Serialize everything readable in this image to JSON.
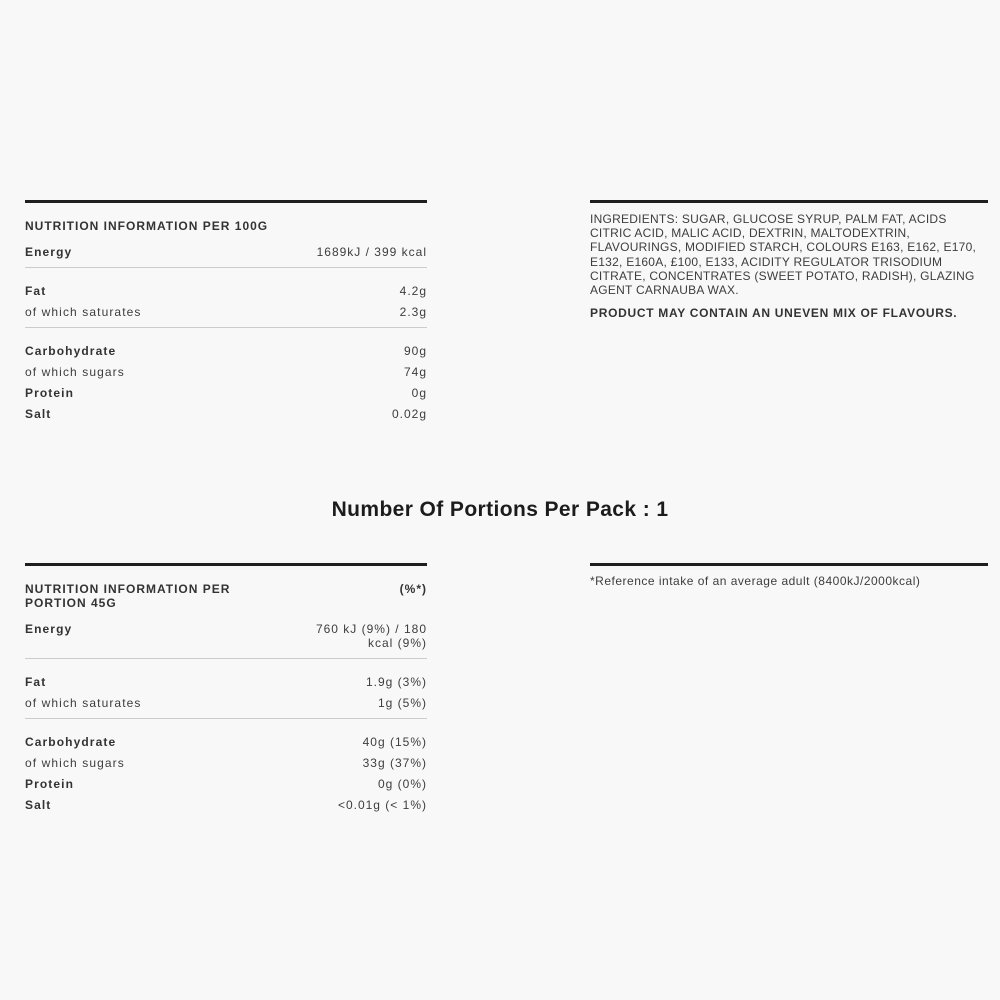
{
  "page_background": "#f8f8f8",
  "colors": {
    "rule_dark": "#1f1f1f",
    "rule_light": "#cccccc",
    "body_text": "#3d3d3d",
    "bold_text": "#333333"
  },
  "nutrition_100g": {
    "title": "NUTRITION INFORMATION PER 100G",
    "groups": [
      {
        "rows": [
          {
            "label": "Energy",
            "value": "1689kJ / 399 kcal"
          }
        ]
      },
      {
        "rows": [
          {
            "label": "Fat",
            "value": "4.2g"
          },
          {
            "label": "of which saturates",
            "value": "2.3g"
          }
        ]
      },
      {
        "rows": [
          {
            "label": "Carbohydrate",
            "value": "90g"
          },
          {
            "label": "of which sugars",
            "value": "74g"
          },
          {
            "label": "Protein",
            "value": "0g"
          },
          {
            "label": "Salt",
            "value": "0.02g"
          }
        ]
      }
    ]
  },
  "ingredients": {
    "text": "INGREDIENTS: SUGAR, GLUCOSE SYRUP, PALM FAT, ACIDS CITRIC ACID, MALIC ACID, DEXTRIN, MALTODEXTRIN, FLAVOURINGS, MODIFIED STARCH, COLOURS E163, E162, E170, E132, E160A, £100, E133, ACIDITY REGULATOR TRISODIUM CITRATE, CONCENTRATES (SWEET POTATO, RADISH), GLAZING AGENT CARNAUBA WAX.",
    "warning": "PRODUCT MAY CONTAIN AN UNEVEN MIX OF FLAVOURS."
  },
  "portions_heading": "Number Of Portions Per Pack : 1",
  "nutrition_portion": {
    "title": "NUTRITION INFORMATION PER PORTION 45G",
    "percent_header": "(%*)",
    "groups": [
      {
        "rows": [
          {
            "label": "Energy",
            "value": "760 kJ (9%) / 180\nkcal (9%)"
          }
        ]
      },
      {
        "rows": [
          {
            "label": "Fat",
            "value": "1.9g (3%)"
          },
          {
            "label": "of which saturates",
            "value": "1g (5%)"
          }
        ]
      },
      {
        "rows": [
          {
            "label": "Carbohydrate",
            "value": "40g (15%)"
          },
          {
            "label": "of which sugars",
            "value": "33g (37%)"
          },
          {
            "label": "Protein",
            "value": "0g (0%)"
          },
          {
            "label": "Salt",
            "value": "<0.01g (< 1%)"
          }
        ]
      }
    ]
  },
  "reference_note": "*Reference intake of an average adult (8400kJ/2000kcal)"
}
